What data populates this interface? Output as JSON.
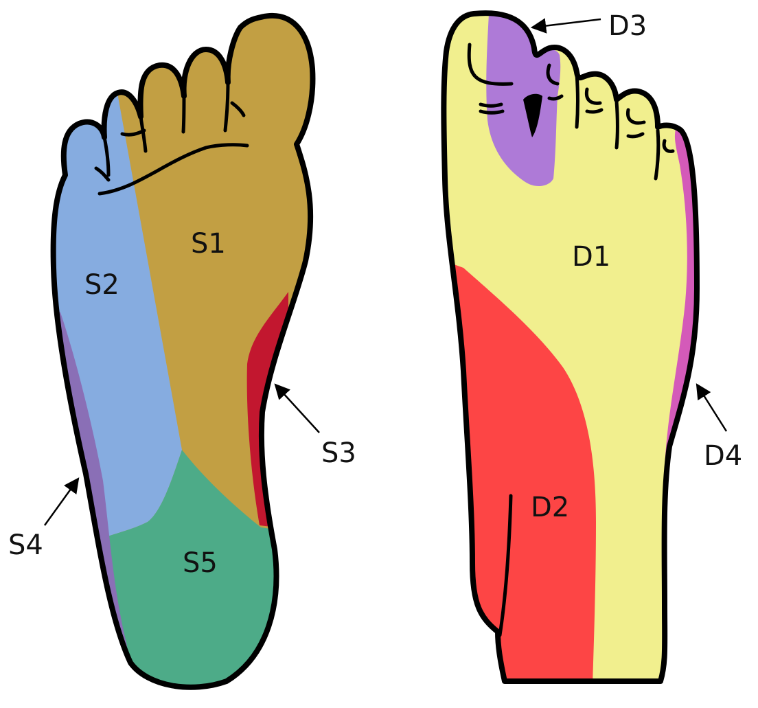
{
  "colors": {
    "S1": "#c29f43",
    "S2": "#86ace0",
    "S3": "#c2172f",
    "S4": "#8a6fb6",
    "S5": "#4dab88",
    "D1": "#f1ef8e",
    "D2": "#fd4545",
    "D3": "#ae7ad7",
    "D4": "#d45ab9",
    "outline": "#000000"
  },
  "plantar_foot": {
    "labels": {
      "s1": "S1",
      "s2": "S2",
      "s3": "S3",
      "s4": "S4",
      "s5": "S5"
    }
  },
  "dorsal_foot": {
    "labels": {
      "d1": "D1",
      "d2": "D2",
      "d3": "D3",
      "d4": "D4"
    }
  }
}
